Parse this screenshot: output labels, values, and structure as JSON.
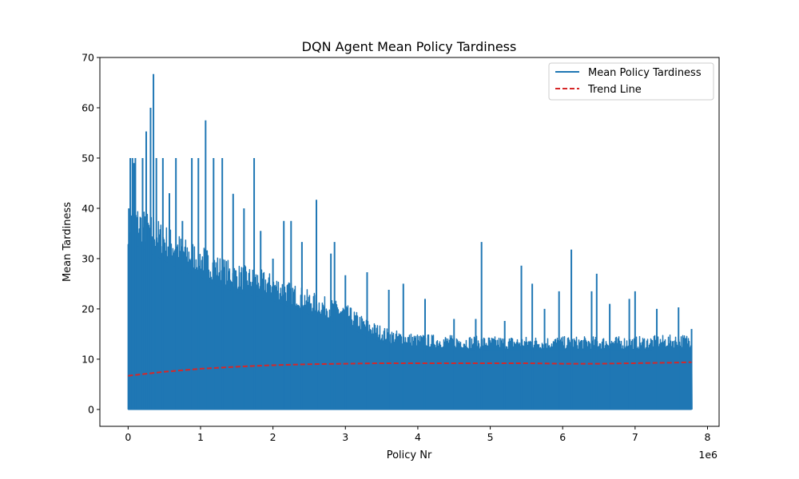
{
  "chart_data": {
    "type": "line",
    "title": "DQN Agent Mean Policy Tardiness",
    "xlabel": "Policy Nr",
    "ylabel": "Mean Tardiness",
    "x_scale_label": "1e6",
    "x_scale_factor": 1000000,
    "xlim": [
      -0.39,
      8.16
    ],
    "ylim": [
      -3.35,
      70
    ],
    "x_ticks": [
      0,
      1,
      2,
      3,
      4,
      5,
      6,
      7,
      8
    ],
    "y_ticks": [
      0,
      10,
      20,
      30,
      40,
      50,
      60,
      70
    ],
    "x_tick_labels": [
      "0",
      "1",
      "2",
      "3",
      "4",
      "5",
      "6",
      "7",
      "8"
    ],
    "y_tick_labels": [
      "0",
      "10",
      "20",
      "30",
      "40",
      "50",
      "60",
      "70"
    ],
    "grid": false,
    "legend_position": "top-right",
    "series": [
      {
        "name": "Mean Policy Tardiness",
        "color": "#1f77b4",
        "style": "solid",
        "x_range": [
          0,
          7.78
        ],
        "y_min": 0,
        "upper_envelope": [
          [
            0,
            40
          ],
          [
            0.1,
            41
          ],
          [
            0.2,
            40
          ],
          [
            0.4,
            38
          ],
          [
            0.6,
            36
          ],
          [
            0.8,
            34
          ],
          [
            1.0,
            33
          ],
          [
            1.2,
            31
          ],
          [
            1.5,
            29
          ],
          [
            1.8,
            28
          ],
          [
            2.0,
            27
          ],
          [
            2.3,
            25
          ],
          [
            2.6,
            23
          ],
          [
            3.0,
            21
          ],
          [
            3.3,
            18
          ],
          [
            3.6,
            16
          ],
          [
            4.0,
            15
          ],
          [
            5.0,
            14.5
          ],
          [
            6.0,
            14.5
          ],
          [
            7.0,
            14.5
          ],
          [
            7.78,
            15
          ]
        ],
        "peaks": [
          [
            0.01,
            40
          ],
          [
            0.03,
            50
          ],
          [
            0.06,
            50
          ],
          [
            0.08,
            49
          ],
          [
            0.1,
            50
          ],
          [
            0.2,
            50
          ],
          [
            0.25,
            55.3
          ],
          [
            0.31,
            60
          ],
          [
            0.35,
            66.7
          ],
          [
            0.39,
            50
          ],
          [
            0.48,
            50
          ],
          [
            0.57,
            43
          ],
          [
            0.66,
            50
          ],
          [
            0.75,
            37.5
          ],
          [
            0.88,
            50
          ],
          [
            0.97,
            50
          ],
          [
            1.07,
            57.5
          ],
          [
            1.18,
            50
          ],
          [
            1.3,
            50
          ],
          [
            1.45,
            42.9
          ],
          [
            1.6,
            40
          ],
          [
            1.74,
            50
          ],
          [
            1.83,
            35.5
          ],
          [
            2.0,
            30
          ],
          [
            2.15,
            37.5
          ],
          [
            2.25,
            37.5
          ],
          [
            2.4,
            33.3
          ],
          [
            2.6,
            41.7
          ],
          [
            2.8,
            31
          ],
          [
            2.85,
            33.3
          ],
          [
            3.0,
            26.7
          ],
          [
            3.3,
            27.3
          ],
          [
            3.6,
            23.8
          ],
          [
            3.8,
            25
          ],
          [
            4.1,
            22
          ],
          [
            4.5,
            18
          ],
          [
            4.8,
            18
          ],
          [
            4.88,
            33.3
          ],
          [
            5.2,
            17.6
          ],
          [
            5.43,
            28.6
          ],
          [
            5.58,
            25
          ],
          [
            5.75,
            20
          ],
          [
            5.95,
            23.5
          ],
          [
            6.12,
            31.8
          ],
          [
            6.4,
            23.5
          ],
          [
            6.47,
            27
          ],
          [
            6.65,
            21
          ],
          [
            6.92,
            22
          ],
          [
            7.0,
            23.5
          ],
          [
            7.3,
            20
          ],
          [
            7.6,
            20.3
          ],
          [
            7.78,
            16
          ]
        ]
      },
      {
        "name": "Trend Line",
        "color": "#d62728",
        "style": "dashed",
        "x": [
          0,
          0.5,
          1.0,
          1.5,
          2.0,
          2.5,
          3.0,
          3.5,
          4.0,
          4.5,
          5.0,
          5.5,
          6.0,
          6.5,
          7.0,
          7.5,
          7.78
        ],
        "values": [
          6.7,
          7.5,
          8.1,
          8.5,
          8.8,
          9.0,
          9.1,
          9.2,
          9.2,
          9.2,
          9.2,
          9.2,
          9.1,
          9.1,
          9.2,
          9.3,
          9.4
        ]
      }
    ]
  }
}
